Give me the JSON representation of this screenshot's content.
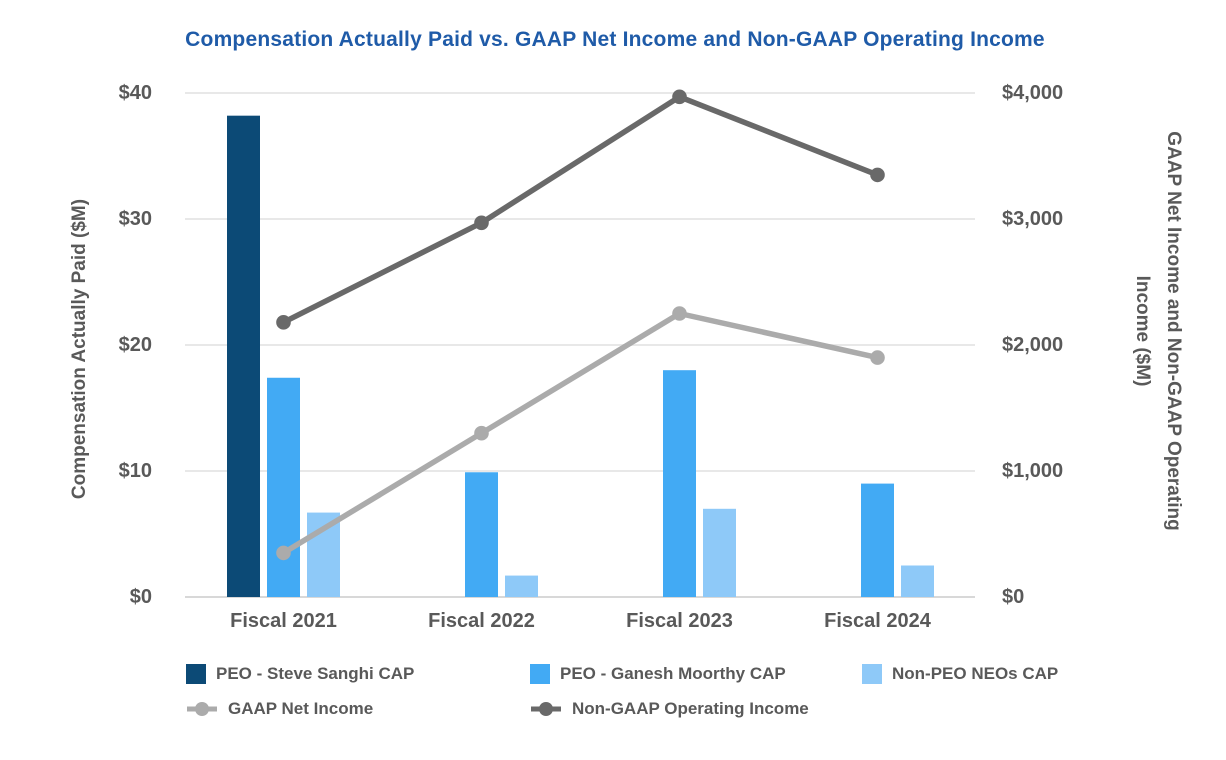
{
  "chart_data": {
    "type": "bar+line combo",
    "title": "Compensation Actually Paid vs. GAAP Net Income and Non-GAAP Operating Income",
    "categories": [
      "Fiscal 2021",
      "Fiscal 2022",
      "Fiscal 2023",
      "Fiscal 2024"
    ],
    "bar_series": [
      {
        "name": "PEO - Steve Sanghi CAP",
        "axis": "left",
        "color": "#0C4A76",
        "values": [
          38.2,
          null,
          null,
          null
        ]
      },
      {
        "name": "PEO - Ganesh Moorthy CAP",
        "axis": "left",
        "color": "#42AAF4",
        "values": [
          17.4,
          9.9,
          18.0,
          9.0
        ]
      },
      {
        "name": "Non-PEO NEOs CAP",
        "axis": "left",
        "color": "#8EC9F8",
        "values": [
          6.7,
          1.7,
          7.0,
          2.5
        ]
      }
    ],
    "line_series": [
      {
        "name": "GAAP Net Income",
        "axis": "right",
        "color": "#ABABAB",
        "values": [
          350,
          1300,
          2250,
          1900
        ]
      },
      {
        "name": "Non-GAAP Operating Income",
        "axis": "right",
        "color": "#696969",
        "values": [
          2180,
          2970,
          3970,
          3350
        ]
      }
    ],
    "left_axis": {
      "title": "Compensation Actually Paid  ($M)",
      "ticks": [
        "$40",
        "$30",
        "$20",
        "$10",
        "$0"
      ],
      "min": 0,
      "max": 40
    },
    "right_axis": {
      "title": "GAAP Net Income and Non-GAAP Operating Income ($M)",
      "title_lines": [
        "GAAP Net Income and Non-GAAP Operating",
        "Income ($M)"
      ],
      "ticks": [
        "$4,000",
        "$3,000",
        "$2,000",
        "$1,000",
        "$0"
      ],
      "min": 0,
      "max": 4000
    },
    "grid": true,
    "legend_position": "bottom",
    "colors": {
      "title_text": "#1F5BA8",
      "axis_text": "#595959",
      "gridline": "#E8E8E8",
      "axis_line": "#D8D8D8"
    }
  }
}
